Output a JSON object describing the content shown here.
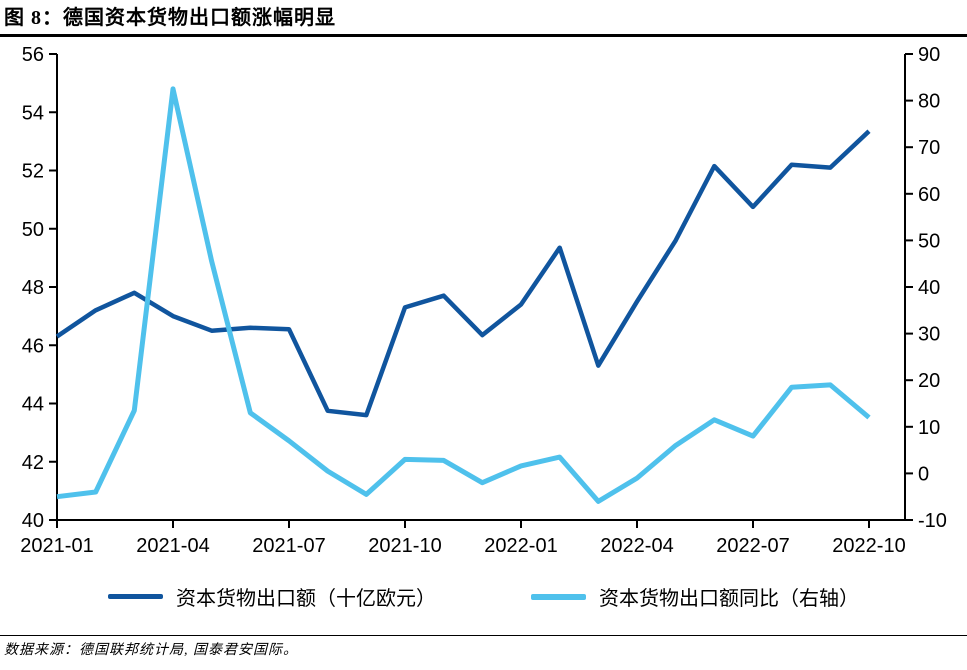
{
  "title": "图 8：德国资本货物出口额涨幅明显",
  "source": "数据来源：德国联邦统计局, 国泰君安国际。",
  "colors": {
    "dark_blue": "#10559E",
    "light_blue": "#4FC1EC",
    "axis": "#000000"
  },
  "legend": [
    {
      "label": "资本货物出口额（十亿欧元）"
    },
    {
      "label": "资本货物出口额同比（右轴）"
    }
  ],
  "chart_data": {
    "type": "line",
    "x": [
      "2021-01",
      "2021-02",
      "2021-03",
      "2021-04",
      "2021-05",
      "2021-06",
      "2021-07",
      "2021-08",
      "2021-09",
      "2021-10",
      "2021-11",
      "2021-12",
      "2022-01",
      "2022-02",
      "2022-03",
      "2022-04",
      "2022-05",
      "2022-06",
      "2022-07",
      "2022-08",
      "2022-09",
      "2022-10"
    ],
    "x_tick_labels": [
      "2021-01",
      "2021-04",
      "2021-07",
      "2021-10",
      "2022-01",
      "2022-04",
      "2022-07",
      "2022-10"
    ],
    "x_tick_every": 3,
    "series": [
      {
        "name": "资本货物出口额（十亿欧元）",
        "axis": "left",
        "color": "#10559E",
        "values": [
          46.3,
          47.2,
          47.8,
          47.0,
          46.5,
          46.6,
          46.55,
          43.75,
          43.6,
          47.3,
          47.7,
          46.35,
          47.4,
          49.35,
          45.3,
          47.5,
          49.6,
          52.15,
          50.75,
          52.2,
          52.1,
          53.35
        ]
      },
      {
        "name": "资本货物出口额同比（右轴）",
        "axis": "right",
        "color": "#4FC1EC",
        "values": [
          -5,
          -4,
          13.5,
          82.5,
          45.5,
          13,
          7,
          0.5,
          -4.5,
          3,
          2.8,
          -2,
          1.6,
          3.5,
          -6,
          -1,
          6,
          11.5,
          8,
          18.5,
          19,
          12
        ]
      }
    ],
    "left_axis": {
      "min": 40,
      "max": 56,
      "step": 2
    },
    "right_axis": {
      "min": -10,
      "max": 90,
      "step": 10
    },
    "grid": false,
    "legend_position": "bottom"
  }
}
